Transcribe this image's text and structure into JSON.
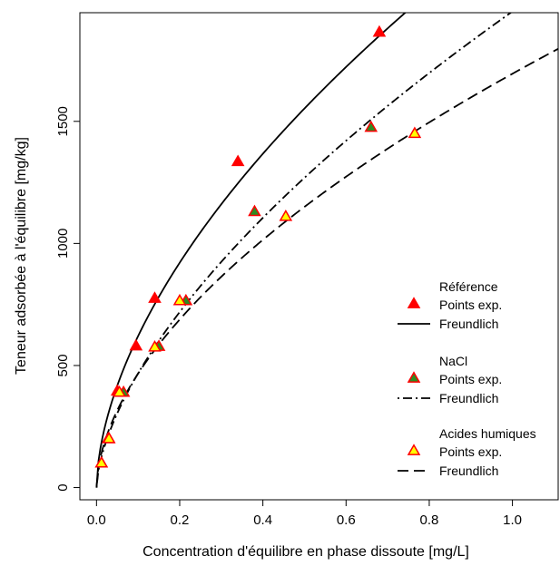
{
  "chart_data": {
    "type": "scatter",
    "xlabel": "Concentration d'équilibre en phase dissoute [mg/L]",
    "ylabel": "Teneur adsorbée à l'équilibre [mg/kg]",
    "xlim": [
      -0.04,
      1.11
    ],
    "ylim": [
      -50,
      1945
    ],
    "x_ticks": [
      {
        "value": 0.0,
        "label": "0.0"
      },
      {
        "value": 0.2,
        "label": "0.2"
      },
      {
        "value": 0.4,
        "label": "0.4"
      },
      {
        "value": 0.6,
        "label": "0.6"
      },
      {
        "value": 0.8,
        "label": "0.8"
      },
      {
        "value": 1.0,
        "label": "1.0"
      }
    ],
    "y_ticks": [
      {
        "value": 0,
        "label": "0"
      },
      {
        "value": 500,
        "label": "500"
      },
      {
        "value": 1000,
        "label": "1000"
      },
      {
        "value": 1500,
        "label": "1500"
      }
    ],
    "grid": false,
    "legend_position": "bottom-right",
    "series": [
      {
        "group_label": "Référence",
        "points_label": "Points exp.",
        "fit_label": "Freundlich",
        "marker_fill": "#ff0000",
        "marker_stroke": "#ff0000",
        "line_style": "solid",
        "points": [
          {
            "x": 0.012,
            "y": 100
          },
          {
            "x": 0.028,
            "y": 200
          },
          {
            "x": 0.05,
            "y": 395
          },
          {
            "x": 0.095,
            "y": 580
          },
          {
            "x": 0.14,
            "y": 775
          },
          {
            "x": 0.34,
            "y": 1335
          },
          {
            "x": 0.68,
            "y": 1865
          }
        ],
        "fit": {
          "K": 2305,
          "n": 0.57
        }
      },
      {
        "group_label": "NaCl",
        "points_label": "Points exp.",
        "fit_label": "Freundlich",
        "marker_fill": "#2e8b22",
        "marker_stroke": "#ff0000",
        "line_style": "dotdash",
        "points": [
          {
            "x": 0.012,
            "y": 100
          },
          {
            "x": 0.03,
            "y": 200
          },
          {
            "x": 0.065,
            "y": 390
          },
          {
            "x": 0.15,
            "y": 578
          },
          {
            "x": 0.215,
            "y": 765
          },
          {
            "x": 0.38,
            "y": 1130
          },
          {
            "x": 0.66,
            "y": 1475
          }
        ],
        "fit": {
          "K": 1950,
          "n": 0.62
        }
      },
      {
        "group_label": "Acides humiques",
        "points_label": "Points exp.",
        "fit_label": "Freundlich",
        "marker_fill": "#ffff00",
        "marker_stroke": "#ff0000",
        "line_style": "dashed",
        "points": [
          {
            "x": 0.012,
            "y": 100
          },
          {
            "x": 0.03,
            "y": 200
          },
          {
            "x": 0.055,
            "y": 390
          },
          {
            "x": 0.14,
            "y": 575
          },
          {
            "x": 0.2,
            "y": 765
          },
          {
            "x": 0.455,
            "y": 1110
          },
          {
            "x": 0.765,
            "y": 1450
          }
        ],
        "fit": {
          "K": 1695,
          "n": 0.56
        }
      }
    ]
  }
}
